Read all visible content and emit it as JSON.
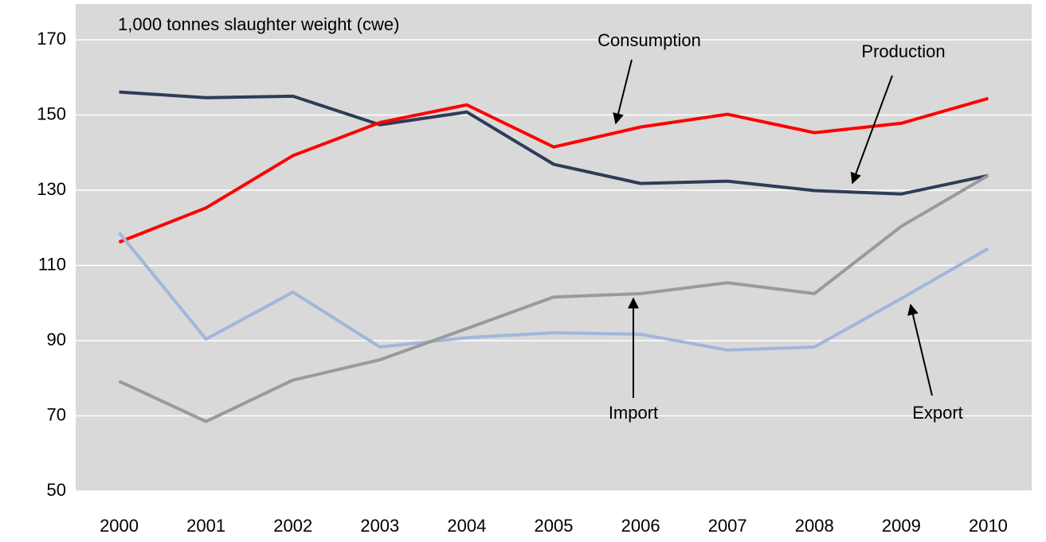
{
  "chart_data": {
    "type": "line",
    "y_axis_label": "1,000 tonnes slaughter weight (cwe)",
    "categories": [
      "2000",
      "2001",
      "2002",
      "2003",
      "2004",
      "2005",
      "2006",
      "2007",
      "2008",
      "2009",
      "2010"
    ],
    "series": [
      {
        "name": "Production",
        "color": "#2e3c58",
        "values": [
          156.1,
          154.6,
          155.0,
          147.4,
          150.8,
          136.9,
          131.8,
          132.4,
          129.9,
          129.0,
          133.9
        ]
      },
      {
        "name": "Consumption",
        "color": "#ff0000",
        "values": [
          116.2,
          125.3,
          139.2,
          148.0,
          152.7,
          141.5,
          146.8,
          150.2,
          145.3,
          147.8,
          154.4
        ]
      },
      {
        "name": "Export",
        "color": "#a2b6dc",
        "values": [
          118.7,
          90.4,
          102.9,
          88.3,
          90.8,
          92.1,
          91.7,
          87.5,
          88.3,
          101.2,
          114.5
        ]
      },
      {
        "name": "Import",
        "color": "#9a9a9a",
        "values": [
          79.2,
          68.5,
          79.5,
          84.9,
          93.2,
          101.6,
          102.5,
          105.4,
          102.5,
          120.4,
          133.9
        ]
      }
    ],
    "ylim": [
      50,
      170
    ],
    "yticks": [
      50,
      70,
      90,
      110,
      130,
      150,
      170
    ],
    "grid": true
  }
}
